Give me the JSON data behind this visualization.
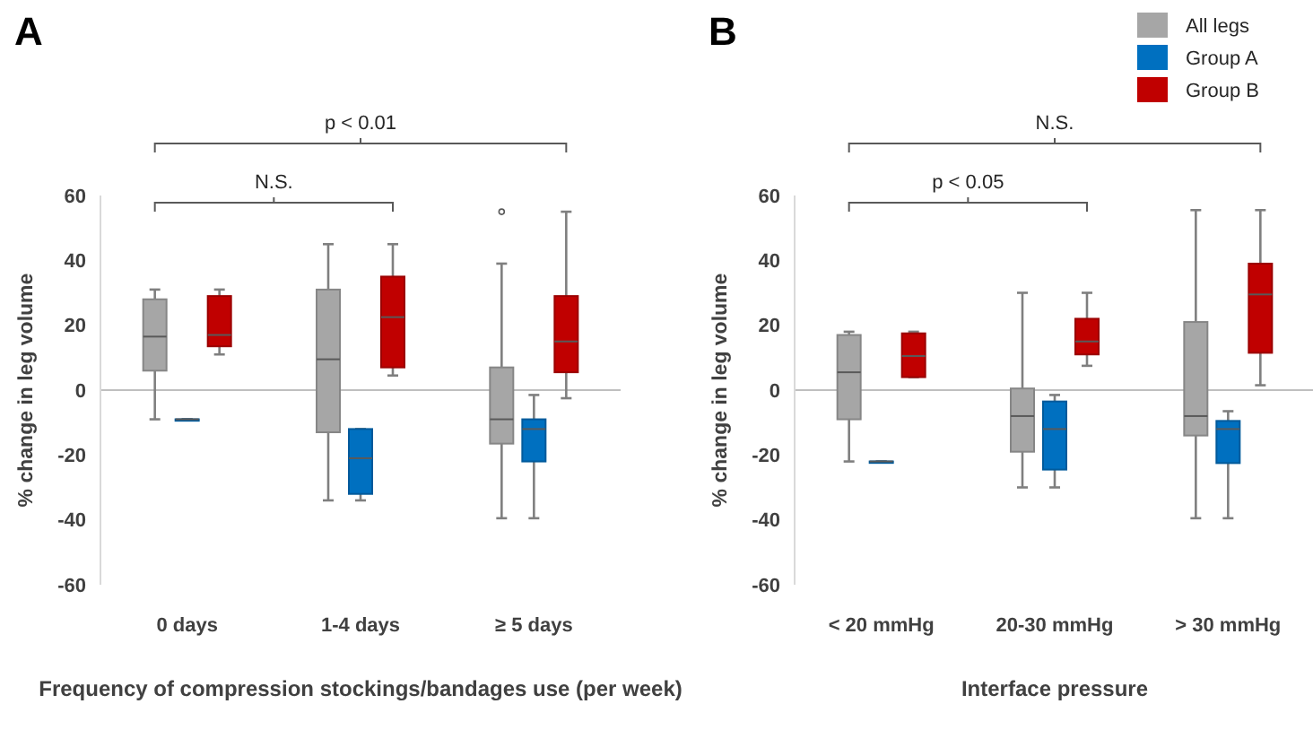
{
  "chart_data": [
    {
      "type": "box",
      "title": "A",
      "categories": [
        "0 days",
        "1-4 days",
        "≥ 5 days"
      ],
      "xlabel": "Frequency of compression stockings/bandages use (per week)",
      "ylabel": "% change in leg volume",
      "ylim": [
        -60,
        60
      ],
      "yticks": [
        -60,
        -40,
        -20,
        0,
        20,
        40,
        60
      ],
      "grid": false,
      "ref_lines": [
        {
          "axis": "y",
          "value": 0,
          "color": "#bfbfbf"
        }
      ],
      "annotations": [
        "p < 0.01",
        "N.S."
      ],
      "series": [
        {
          "color": "#a6a6a6",
          "boxes": [
            {
              "low": -9,
              "q1": 6,
              "median": 16.5,
              "q3": 28,
              "high": 31
            },
            {
              "low": -34,
              "q1": -13,
              "median": 9.5,
              "q3": 31,
              "high": 45
            },
            {
              "low": -39.5,
              "q1": -16.5,
              "median": -9,
              "q3": 7,
              "high": 39,
              "outliers": [
                55
              ]
            }
          ]
        },
        {
          "color": "#0070c0",
          "boxes": [
            {
              "low": -9,
              "q1": -9,
              "median": -9,
              "q3": -9,
              "high": -9
            },
            {
              "low": -34,
              "q1": -32,
              "median": -21,
              "q3": -12,
              "high": -12
            },
            {
              "low": -39.5,
              "q1": -22,
              "median": -12,
              "q3": -9,
              "high": -1.5
            }
          ]
        },
        {
          "color": "#c00000",
          "boxes": [
            {
              "low": 11,
              "q1": 13.5,
              "median": 17,
              "q3": 29,
              "high": 31
            },
            {
              "low": 4.5,
              "q1": 7,
              "median": 22.5,
              "q3": 35,
              "high": 45
            },
            {
              "low": -2.5,
              "q1": 5.5,
              "median": 15,
              "q3": 29,
              "high": 55
            }
          ]
        }
      ]
    },
    {
      "type": "box",
      "title": "B",
      "categories": [
        "< 20 mmHg",
        "20-30 mmHg",
        "> 30 mmHg"
      ],
      "xlabel": "Interface pressure",
      "ylabel": "% change in leg volume",
      "ylim": [
        -60,
        60
      ],
      "yticks": [
        -60,
        -40,
        -20,
        0,
        20,
        40,
        60
      ],
      "grid": false,
      "legend": "top right",
      "ref_lines": [
        {
          "axis": "y",
          "value": 0,
          "color": "#bfbfbf"
        }
      ],
      "annotations": [
        "N.S.",
        "p < 0.05"
      ],
      "series": [
        {
          "name": "All legs",
          "color": "#a6a6a6",
          "boxes": [
            {
              "low": -22,
              "q1": -9,
              "median": 5.5,
              "q3": 17,
              "high": 18
            },
            {
              "low": -30,
              "q1": -19,
              "median": -8,
              "q3": 0.5,
              "high": 30
            },
            {
              "low": -39.5,
              "q1": -14,
              "median": -8,
              "q3": 21,
              "high": 55.5
            }
          ]
        },
        {
          "name": "Group A",
          "color": "#0070c0",
          "boxes": [
            {
              "low": -22,
              "q1": -22,
              "median": -22,
              "q3": -22,
              "high": -22
            },
            {
              "low": -30,
              "q1": -24.5,
              "median": -12,
              "q3": -3.5,
              "high": -1.5
            },
            {
              "low": -39.5,
              "q1": -22.5,
              "median": -12,
              "q3": -9.5,
              "high": -6.5
            }
          ]
        },
        {
          "name": "Group B",
          "color": "#c00000",
          "boxes": [
            {
              "low": 4,
              "q1": 4,
              "median": 10.5,
              "q3": 17.5,
              "high": 18
            },
            {
              "low": 7.5,
              "q1": 11,
              "median": 15,
              "q3": 22,
              "high": 30
            },
            {
              "low": 1.5,
              "q1": 11.5,
              "median": 29.5,
              "q3": 39,
              "high": 55.5
            }
          ]
        }
      ]
    }
  ]
}
